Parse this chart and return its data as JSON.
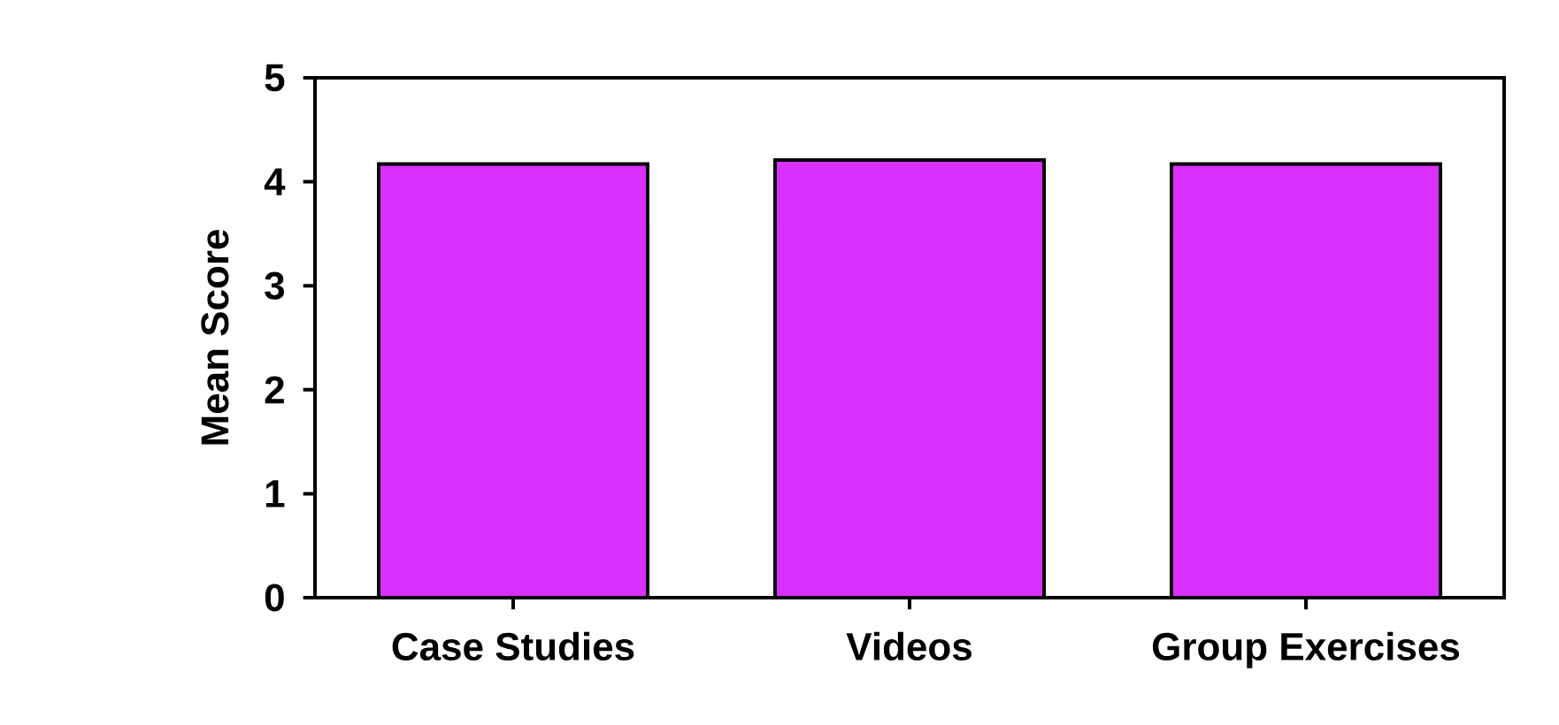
{
  "chart_data": {
    "type": "bar",
    "ylabel": "Mean Score",
    "categories": [
      "Case Studies",
      "Videos",
      "Group Exercises"
    ],
    "values": [
      4.17,
      4.21,
      4.17
    ],
    "color": "#d930ff",
    "ylim": [
      0,
      5
    ],
    "yticks": [
      0,
      1,
      2,
      3,
      4,
      5
    ],
    "grid": false
  }
}
